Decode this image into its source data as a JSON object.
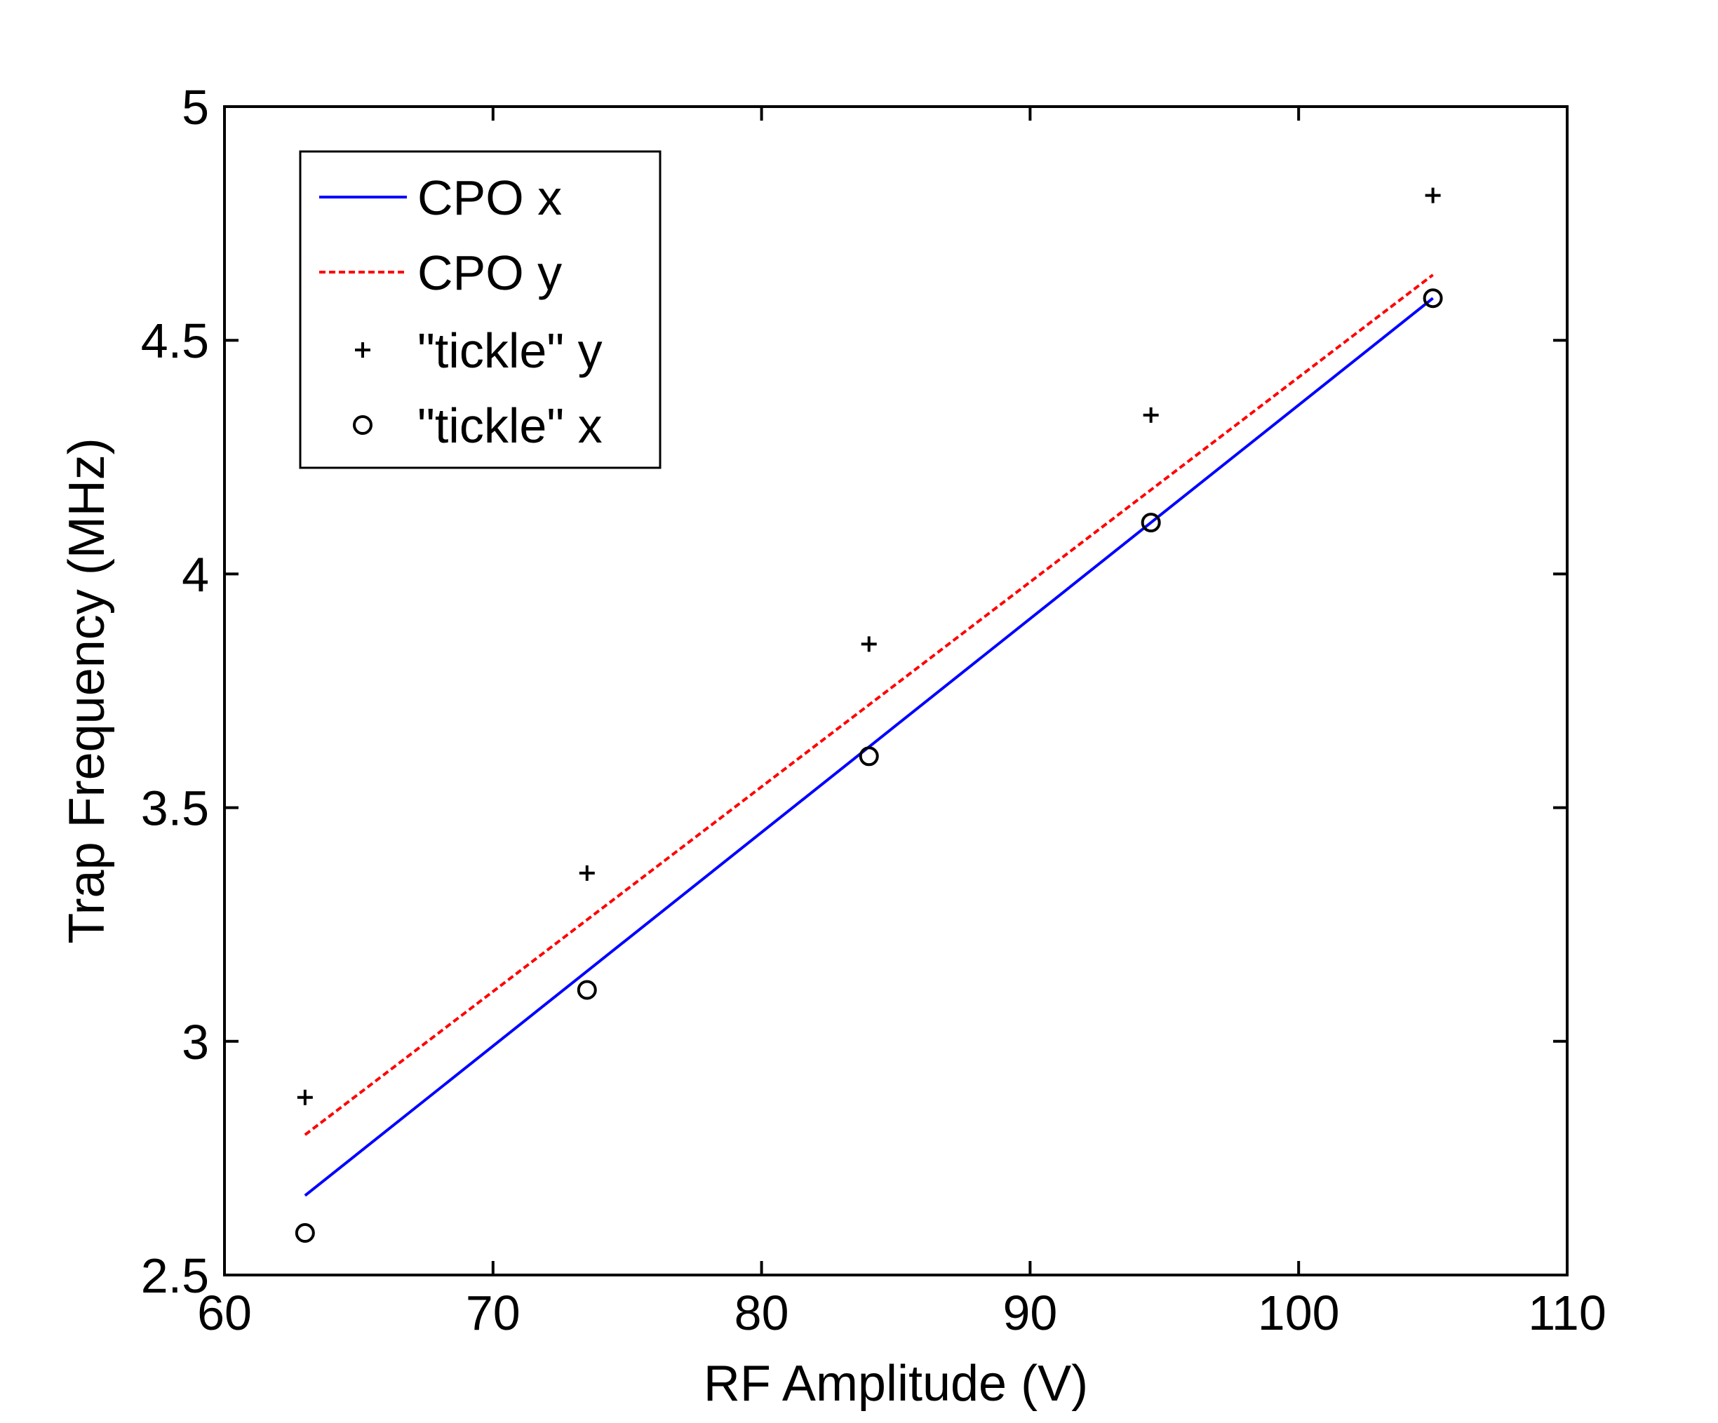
{
  "chart_data": {
    "type": "line",
    "title": "",
    "xlabel": "RF Amplitude (V)",
    "ylabel": "Trap Frequency (MHz)",
    "xlim": [
      60,
      110
    ],
    "ylim": [
      2.5,
      5
    ],
    "xticks": [
      60,
      70,
      80,
      90,
      100,
      110
    ],
    "yticks": [
      2.5,
      3,
      3.5,
      4,
      4.5,
      5
    ],
    "xtick_labels": [
      "60",
      "70",
      "80",
      "90",
      "100",
      "110"
    ],
    "ytick_labels": [
      "2.5",
      "3",
      "3.5",
      "4",
      "4.5",
      "5"
    ],
    "grid": false,
    "legend": {
      "position": "top-left"
    },
    "series": [
      {
        "name": "CPO x",
        "style": "solid-line",
        "color": "#0000ff",
        "x": [
          63,
          105
        ],
        "y": [
          2.67,
          4.59
        ]
      },
      {
        "name": "CPO y",
        "style": "dashed-line",
        "color": "#ff0000",
        "x": [
          63,
          105
        ],
        "y": [
          2.8,
          4.64
        ]
      },
      {
        "name": "\"tickle\" y",
        "style": "plus-marker",
        "color": "#000000",
        "x": [
          63,
          73.5,
          84,
          94.5,
          105
        ],
        "y": [
          2.88,
          3.36,
          3.85,
          4.34,
          4.81
        ]
      },
      {
        "name": "\"tickle\" x",
        "style": "circle-marker",
        "color": "#000000",
        "x": [
          63,
          73.5,
          84,
          94.5,
          105
        ],
        "y": [
          2.59,
          3.11,
          3.61,
          4.11,
          4.59
        ]
      }
    ]
  }
}
